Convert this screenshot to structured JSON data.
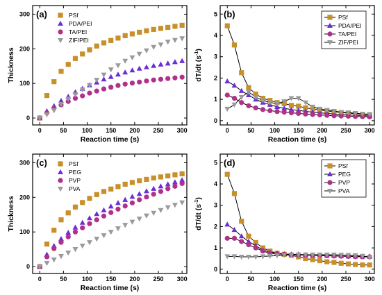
{
  "colors": {
    "PSf": "#c8902a",
    "PDA/PEI": "#6a2fd6",
    "TA/PEI": "#b0308a",
    "ZIF/PEI": "#9a9a9a",
    "PEG": "#6a2fd6",
    "PVP": "#b0308a",
    "PVA": "#9a9a9a"
  },
  "chart_data": [
    {
      "panel": "a",
      "type": "scatter",
      "label": "(a)",
      "xlabel": "Reaction time (s)",
      "ylabel": "Thickness",
      "xlim": [
        -15,
        310
      ],
      "ylim": [
        -20,
        325
      ],
      "xticks": [
        0,
        50,
        100,
        150,
        200,
        250,
        300
      ],
      "yticks": [
        0,
        100,
        200,
        300
      ],
      "legend_position": "top-left",
      "series": [
        {
          "name": "PSf",
          "marker": "square",
          "x": [
            0,
            15,
            30,
            45,
            60,
            75,
            90,
            105,
            120,
            135,
            150,
            165,
            180,
            195,
            210,
            225,
            240,
            255,
            270,
            285,
            300
          ],
          "y": [
            0,
            65,
            105,
            135,
            155,
            172,
            185,
            197,
            208,
            217,
            224,
            231,
            238,
            243,
            248,
            252,
            256,
            259,
            262,
            265,
            268
          ]
        },
        {
          "name": "PDA/PEI",
          "marker": "triangle-up",
          "x": [
            0,
            15,
            30,
            45,
            60,
            75,
            90,
            105,
            120,
            135,
            150,
            165,
            180,
            195,
            210,
            225,
            240,
            255,
            270,
            285,
            300
          ],
          "y": [
            0,
            20,
            35,
            50,
            62,
            75,
            85,
            95,
            103,
            112,
            119,
            126,
            132,
            138,
            143,
            147,
            151,
            155,
            158,
            162,
            165
          ]
        },
        {
          "name": "TA/PEI",
          "marker": "circle",
          "x": [
            0,
            15,
            30,
            45,
            60,
            75,
            90,
            105,
            120,
            135,
            150,
            165,
            180,
            195,
            210,
            225,
            240,
            255,
            270,
            285,
            300
          ],
          "y": [
            0,
            15,
            28,
            38,
            48,
            57,
            64,
            72,
            78,
            84,
            89,
            94,
            98,
            101,
            104,
            107,
            110,
            112,
            114,
            116,
            118
          ]
        },
        {
          "name": "ZIF/PEI",
          "marker": "triangle-down",
          "x": [
            0,
            15,
            30,
            45,
            60,
            75,
            90,
            105,
            120,
            135,
            150,
            165,
            180,
            195,
            210,
            225,
            240,
            255,
            270,
            285,
            300
          ],
          "y": [
            0,
            10,
            22,
            40,
            55,
            68,
            82,
            95,
            110,
            125,
            140,
            152,
            165,
            175,
            185,
            195,
            205,
            212,
            220,
            225,
            230
          ]
        }
      ]
    },
    {
      "panel": "b",
      "type": "line",
      "label": "(b)",
      "xlabel": "Reaction time (s)",
      "ylabel": "dT/dt (s",
      "ylabel_sup": "-1",
      "ylabel_end": ")",
      "xlim": [
        -15,
        310
      ],
      "ylim": [
        -0.2,
        5.4
      ],
      "xticks": [
        0,
        50,
        100,
        150,
        200,
        250,
        300
      ],
      "yticks": [
        0,
        1,
        2,
        3,
        4,
        5
      ],
      "legend_position": "top-right",
      "series": [
        {
          "name": "PSf",
          "marker": "square",
          "x": [
            0,
            15,
            30,
            45,
            60,
            75,
            90,
            105,
            120,
            135,
            150,
            165,
            180,
            195,
            210,
            225,
            240,
            255,
            270,
            285,
            300
          ],
          "y": [
            4.45,
            3.55,
            2.25,
            1.55,
            1.25,
            1.05,
            0.95,
            0.85,
            0.8,
            0.72,
            0.68,
            0.6,
            0.55,
            0.5,
            0.45,
            0.42,
            0.38,
            0.35,
            0.33,
            0.3,
            0.28
          ]
        },
        {
          "name": "PDA/PEI",
          "marker": "triangle-up",
          "x": [
            0,
            15,
            30,
            45,
            60,
            75,
            90,
            105,
            120,
            135,
            150,
            165,
            180,
            195,
            210,
            225,
            240,
            255,
            270,
            285,
            300
          ],
          "y": [
            1.85,
            1.65,
            1.4,
            1.2,
            1.0,
            0.85,
            0.75,
            0.65,
            0.58,
            0.52,
            0.48,
            0.44,
            0.4,
            0.37,
            0.34,
            0.31,
            0.29,
            0.27,
            0.25,
            0.24,
            0.22
          ]
        },
        {
          "name": "TA/PEI",
          "marker": "circle",
          "x": [
            0,
            15,
            30,
            45,
            60,
            75,
            90,
            105,
            120,
            135,
            150,
            165,
            180,
            195,
            210,
            225,
            240,
            255,
            270,
            285,
            300
          ],
          "y": [
            1.2,
            1.05,
            0.85,
            0.7,
            0.6,
            0.52,
            0.47,
            0.43,
            0.4,
            0.37,
            0.34,
            0.31,
            0.29,
            0.27,
            0.25,
            0.23,
            0.22,
            0.21,
            0.2,
            0.19,
            0.18
          ]
        },
        {
          "name": "ZIF/PEI",
          "marker": "triangle-down",
          "x": [
            0,
            15,
            30,
            45,
            60,
            75,
            90,
            105,
            120,
            135,
            150,
            165,
            180,
            195,
            210,
            225,
            240,
            255,
            270,
            285,
            300
          ],
          "y": [
            0.55,
            0.75,
            1.1,
            1.35,
            1.1,
            0.95,
            0.85,
            0.8,
            0.9,
            1.05,
            1.05,
            0.85,
            0.65,
            0.55,
            0.5,
            0.45,
            0.4,
            0.38,
            0.35,
            0.32,
            0.3
          ]
        }
      ]
    },
    {
      "panel": "c",
      "type": "scatter",
      "label": "(c)",
      "xlabel": "Reaction time (s)",
      "ylabel": "Thickness",
      "xlim": [
        -15,
        310
      ],
      "ylim": [
        -20,
        325
      ],
      "xticks": [
        0,
        50,
        100,
        150,
        200,
        250,
        300
      ],
      "yticks": [
        0,
        100,
        200,
        300
      ],
      "legend_position": "top-left",
      "series": [
        {
          "name": "PSf",
          "marker": "square",
          "x": [
            0,
            15,
            30,
            45,
            60,
            75,
            90,
            105,
            120,
            135,
            150,
            165,
            180,
            195,
            210,
            225,
            240,
            255,
            270,
            285,
            300
          ],
          "y": [
            0,
            65,
            105,
            135,
            155,
            172,
            185,
            197,
            208,
            217,
            224,
            231,
            238,
            243,
            248,
            252,
            256,
            259,
            262,
            265,
            268
          ]
        },
        {
          "name": "PEG",
          "marker": "triangle-up",
          "x": [
            0,
            15,
            30,
            45,
            60,
            75,
            90,
            105,
            120,
            135,
            150,
            165,
            180,
            195,
            210,
            225,
            240,
            255,
            270,
            285,
            300
          ],
          "y": [
            0,
            35,
            60,
            80,
            98,
            113,
            127,
            140,
            152,
            163,
            174,
            184,
            193,
            202,
            210,
            218,
            225,
            232,
            238,
            244,
            250
          ]
        },
        {
          "name": "PVP",
          "marker": "circle",
          "x": [
            0,
            15,
            30,
            45,
            60,
            75,
            90,
            105,
            120,
            135,
            150,
            165,
            180,
            195,
            210,
            225,
            240,
            255,
            270,
            285,
            300
          ],
          "y": [
            0,
            28,
            52,
            70,
            86,
            100,
            112,
            124,
            135,
            146,
            156,
            166,
            175,
            184,
            193,
            201,
            209,
            217,
            225,
            232,
            240
          ]
        },
        {
          "name": "PVA",
          "marker": "triangle-down",
          "x": [
            0,
            15,
            30,
            45,
            60,
            75,
            90,
            105,
            120,
            135,
            150,
            165,
            180,
            195,
            210,
            225,
            240,
            255,
            270,
            285,
            300
          ],
          "y": [
            0,
            10,
            20,
            30,
            40,
            50,
            60,
            70,
            80,
            90,
            100,
            110,
            120,
            129,
            138,
            147,
            155,
            163,
            171,
            178,
            185
          ]
        }
      ]
    },
    {
      "panel": "d",
      "type": "line",
      "label": "(d)",
      "xlabel": "Reaction time (s)",
      "ylabel": "dT/dt (s",
      "ylabel_sup": "-1",
      "ylabel_end": ")",
      "xlim": [
        -15,
        310
      ],
      "ylim": [
        -0.2,
        5.4
      ],
      "xticks": [
        0,
        50,
        100,
        150,
        200,
        250,
        300
      ],
      "yticks": [
        0,
        1,
        2,
        3,
        4,
        5
      ],
      "legend_position": "top-right",
      "series": [
        {
          "name": "PSf",
          "marker": "square",
          "x": [
            0,
            15,
            30,
            45,
            60,
            75,
            90,
            105,
            120,
            135,
            150,
            165,
            180,
            195,
            210,
            225,
            240,
            255,
            270,
            285,
            300
          ],
          "y": [
            4.45,
            3.55,
            2.25,
            1.55,
            1.25,
            1.0,
            0.85,
            0.75,
            0.7,
            0.65,
            0.58,
            0.5,
            0.45,
            0.4,
            0.35,
            0.32,
            0.28,
            0.25,
            0.22,
            0.2,
            0.2
          ]
        },
        {
          "name": "PEG",
          "marker": "triangle-up",
          "x": [
            0,
            15,
            30,
            45,
            60,
            75,
            90,
            105,
            120,
            135,
            150,
            165,
            180,
            195,
            210,
            225,
            240,
            255,
            270,
            285,
            300
          ],
          "y": [
            2.1,
            1.85,
            1.55,
            1.3,
            1.1,
            0.9,
            0.8,
            0.75,
            0.72,
            0.7,
            0.7,
            0.68,
            0.66,
            0.65,
            0.64,
            0.63,
            0.62,
            0.61,
            0.6,
            0.6,
            0.6
          ]
        },
        {
          "name": "PVP",
          "marker": "circle",
          "x": [
            0,
            15,
            30,
            45,
            60,
            75,
            90,
            105,
            120,
            135,
            150,
            165,
            180,
            195,
            210,
            225,
            240,
            255,
            270,
            285,
            300
          ],
          "y": [
            1.45,
            1.45,
            1.3,
            1.15,
            1.0,
            0.85,
            0.75,
            0.72,
            0.7,
            0.68,
            0.67,
            0.66,
            0.65,
            0.64,
            0.63,
            0.62,
            0.61,
            0.6,
            0.59,
            0.58,
            0.58
          ]
        },
        {
          "name": "PVA",
          "marker": "triangle-down",
          "x": [
            0,
            15,
            30,
            45,
            60,
            75,
            90,
            105,
            120,
            135,
            150,
            165,
            180,
            195,
            210,
            225,
            240,
            255,
            270,
            285,
            300
          ],
          "y": [
            0.6,
            0.6,
            0.58,
            0.58,
            0.58,
            0.6,
            0.62,
            0.64,
            0.66,
            0.67,
            0.68,
            0.68,
            0.68,
            0.68,
            0.68,
            0.68,
            0.67,
            0.66,
            0.65,
            0.62,
            0.55
          ]
        }
      ]
    }
  ]
}
